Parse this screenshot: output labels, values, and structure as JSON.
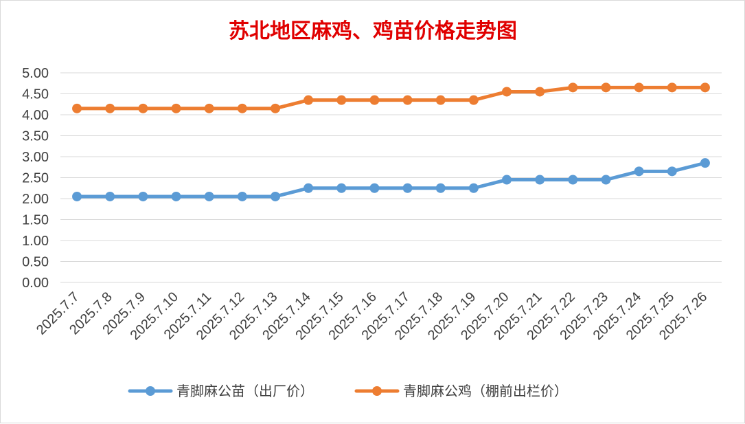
{
  "chart_data": {
    "type": "line",
    "title": "苏北地区麻鸡、鸡苗价格走势图",
    "categories": [
      "2025.7.7",
      "2025.7.8",
      "2025.7.9",
      "2025.7.10",
      "2025.7.11",
      "2025.7.12",
      "2025.7.13",
      "2025.7.14",
      "2025.7.15",
      "2025.7.16",
      "2025.7.17",
      "2025.7.18",
      "2025.7.19",
      "2025.7.20",
      "2025.7.21",
      "2025.7.22",
      "2025.7.23",
      "2025.7.24",
      "2025.7.25",
      "2025.7.26"
    ],
    "series": [
      {
        "name": "青脚麻公苗（出厂价）",
        "color": "#5b9bd5",
        "values": [
          2.05,
          2.05,
          2.05,
          2.05,
          2.05,
          2.05,
          2.05,
          2.25,
          2.25,
          2.25,
          2.25,
          2.25,
          2.25,
          2.45,
          2.45,
          2.45,
          2.45,
          2.65,
          2.65,
          2.85
        ]
      },
      {
        "name": "青脚麻公鸡（棚前出栏价）",
        "color": "#ed7d31",
        "values": [
          4.15,
          4.15,
          4.15,
          4.15,
          4.15,
          4.15,
          4.15,
          4.35,
          4.35,
          4.35,
          4.35,
          4.35,
          4.35,
          4.55,
          4.55,
          4.65,
          4.65,
          4.65,
          4.65,
          4.65
        ]
      }
    ],
    "y_ticks": [
      "0.00",
      "0.50",
      "1.00",
      "1.50",
      "2.00",
      "2.50",
      "3.00",
      "3.50",
      "4.00",
      "4.50",
      "5.00"
    ],
    "ylim": [
      0,
      5
    ],
    "xlabel": "",
    "ylabel": "",
    "grid": true,
    "legend_position": "bottom"
  }
}
